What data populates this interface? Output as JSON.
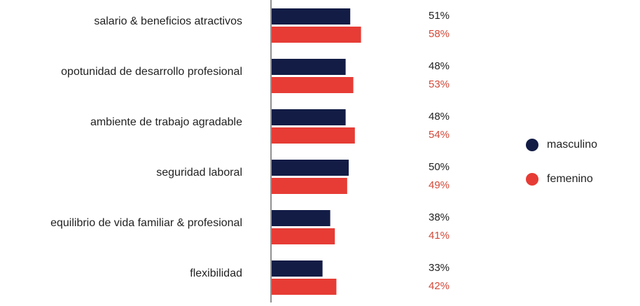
{
  "chart_data": {
    "type": "bar",
    "orientation": "horizontal",
    "categories": [
      "salario & beneficios atractivos",
      "opotunidad de desarrollo profesional",
      "ambiente de trabajo agradable",
      "seguridad laboral",
      "equilibrio de vida familiar & profesional",
      "flexibilidad"
    ],
    "series": [
      {
        "name": "masculino",
        "color": "#121c45",
        "values": [
          51,
          48,
          48,
          50,
          38,
          33
        ],
        "labels": [
          "51%",
          "48%",
          "48%",
          "50%",
          "38%",
          "33%"
        ]
      },
      {
        "name": "femenino",
        "color": "#e63c35",
        "values": [
          58,
          53,
          54,
          49,
          41,
          42
        ],
        "labels": [
          "58%",
          "53%",
          "54%",
          "49%",
          "41%",
          "42%"
        ]
      }
    ],
    "value_label_colors": {
      "masculino": "#222222",
      "femenino": "#d24a3a"
    },
    "legend": {
      "position": "right",
      "items": [
        "masculino",
        "femenino"
      ]
    },
    "grid": false,
    "xlim": [
      0,
      100
    ]
  }
}
